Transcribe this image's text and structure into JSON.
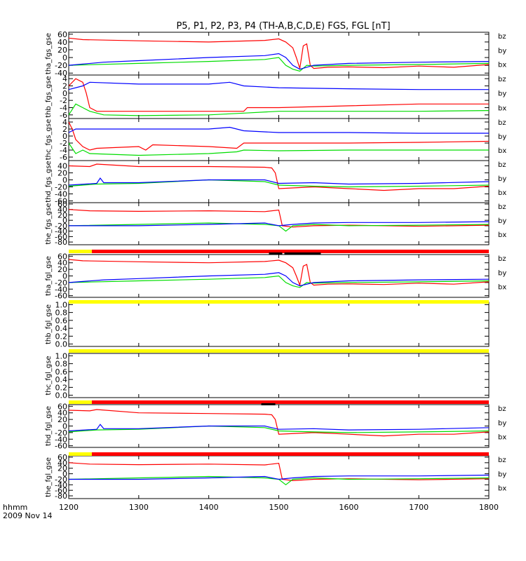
{
  "chart_data": {
    "type": "line",
    "title": "P5, P1, P2, P3, P4 (TH-A,B,C,D,E) FGS, FGL [nT]",
    "x_range": [
      1200,
      1800
    ],
    "x_ticks": [
      "1200",
      "1300",
      "1400",
      "1500",
      "1600",
      "1700",
      "1800"
    ],
    "x_label_1": "hhmm",
    "x_label_2": "2009 Nov 14",
    "legend": [
      "bz",
      "by",
      "bx"
    ],
    "colors": {
      "bz": "#ff0000",
      "by": "#00dd00",
      "bx": "#0000ff"
    },
    "panels": [
      {
        "ylabel": "tha_fgs_gse",
        "y_ticks": [
          "60",
          "40",
          "20",
          "0",
          "-20",
          "-40"
        ],
        "ylim": [
          -45,
          65
        ],
        "series": [
          {
            "name": "bz",
            "x": [
              1200,
              1220,
              1300,
              1400,
              1480,
              1500,
              1510,
              1520,
              1525,
              1530,
              1535,
              1540,
              1545,
              1550,
              1570,
              1600,
              1650,
              1700,
              1750,
              1800
            ],
            "values": [
              50,
              46,
              43,
              40,
              44,
              48,
              40,
              25,
              0,
              -28,
              30,
              35,
              -20,
              -28,
              -25,
              -24,
              -26,
              -22,
              -25,
              -18
            ]
          },
          {
            "name": "by",
            "x": [
              1200,
              1300,
              1400,
              1480,
              1500,
              1510,
              1520,
              1530,
              1540,
              1550,
              1600,
              1700,
              1800
            ],
            "values": [
              -20,
              -15,
              -10,
              -5,
              0,
              -20,
              -30,
              -35,
              -20,
              -22,
              -20,
              -18,
              -15
            ]
          },
          {
            "name": "bx",
            "x": [
              1200,
              1250,
              1300,
              1400,
              1480,
              1500,
              1510,
              1520,
              1530,
              1550,
              1600,
              1700,
              1800
            ],
            "values": [
              -20,
              -12,
              -8,
              0,
              5,
              10,
              0,
              -20,
              -30,
              -20,
              -15,
              -12,
              -10
            ]
          }
        ]
      },
      {
        "ylabel": "thb_fgs_gse",
        "y_ticks": [
          "4",
          "2",
          "0",
          "-2",
          "-4",
          "-6"
        ],
        "ylim": [
          -7,
          5
        ],
        "series": [
          {
            "name": "bz",
            "x": [
              1200,
              1210,
              1220,
              1225,
              1230,
              1240,
              1300,
              1400,
              1450,
              1455,
              1500,
              1600,
              1700,
              1800
            ],
            "values": [
              2,
              4,
              3,
              0,
              -4,
              -5,
              -5,
              -5,
              -5,
              -4,
              -4,
              -3.5,
              -3,
              -3
            ]
          },
          {
            "name": "by",
            "x": [
              1200,
              1210,
              1220,
              1230,
              1250,
              1300,
              1400,
              1450,
              1500,
              1600,
              1700,
              1800
            ],
            "values": [
              -6,
              -3,
              -4,
              -5,
              -6,
              -6.2,
              -6,
              -5.5,
              -5,
              -5,
              -5,
              -4.8
            ]
          },
          {
            "name": "bx",
            "x": [
              1200,
              1220,
              1230,
              1300,
              1400,
              1430,
              1450,
              1500,
              1600,
              1700,
              1800
            ],
            "values": [
              1,
              2,
              3,
              2.5,
              2.5,
              3,
              2,
              1.5,
              1.2,
              1,
              1
            ]
          }
        ]
      },
      {
        "ylabel": "thc_fgs_gse",
        "y_ticks": [
          "4",
          "2",
          "0",
          "-2",
          "-4",
          "-6"
        ],
        "ylim": [
          -7,
          5
        ],
        "series": [
          {
            "name": "bz",
            "x": [
              1200,
              1205,
              1210,
              1220,
              1230,
              1240,
              1300,
              1310,
              1320,
              1400,
              1440,
              1450,
              1500,
              1600,
              1700,
              1800
            ],
            "values": [
              4,
              2,
              -1,
              -3,
              -4,
              -3.5,
              -3,
              -4,
              -2.5,
              -3,
              -3.5,
              -2,
              -2,
              -2,
              -1.8,
              -1.5
            ]
          },
          {
            "name": "by",
            "x": [
              1200,
              1210,
              1220,
              1230,
              1300,
              1400,
              1440,
              1450,
              1500,
              1600,
              1700,
              1800
            ],
            "values": [
              -2,
              -5,
              -4,
              -5,
              -5.5,
              -5,
              -4.5,
              -4,
              -4.2,
              -4,
              -4,
              -4
            ]
          },
          {
            "name": "bx",
            "x": [
              1200,
              1210,
              1230,
              1300,
              1400,
              1430,
              1450,
              1500,
              1600,
              1700,
              1800
            ],
            "values": [
              1,
              2,
              2,
              2,
              2,
              2.5,
              1.5,
              1,
              1,
              0.8,
              0.8
            ]
          }
        ]
      },
      {
        "ylabel": "thd_fgs_gse",
        "y_ticks": [
          "40",
          "20",
          "0",
          "-20",
          "-40",
          "-60"
        ],
        "ylim": [
          -65,
          55
        ],
        "series": [
          {
            "name": "bz",
            "x": [
              1200,
              1230,
              1240,
              1300,
              1400,
              1480,
              1490,
              1495,
              1500,
              1550,
              1600,
              1650,
              1700,
              1750,
              1800
            ],
            "values": [
              40,
              38,
              45,
              38,
              38,
              36,
              34,
              20,
              -25,
              -20,
              -25,
              -30,
              -25,
              -25,
              -18
            ]
          },
          {
            "name": "by",
            "x": [
              1200,
              1240,
              1300,
              1400,
              1480,
              1500,
              1550,
              1600,
              1700,
              1800
            ],
            "values": [
              -18,
              -12,
              -10,
              0,
              -5,
              -15,
              -18,
              -20,
              -18,
              -15
            ]
          },
          {
            "name": "bx",
            "x": [
              1200,
              1240,
              1245,
              1250,
              1300,
              1400,
              1480,
              1500,
              1550,
              1600,
              1700,
              1800
            ],
            "values": [
              -15,
              -10,
              5,
              -8,
              -8,
              0,
              0,
              -10,
              -8,
              -12,
              -10,
              -5
            ]
          }
        ]
      },
      {
        "ylabel": "the_fgs_gse",
        "y_ticks": [
          "60",
          "40",
          "20",
          "0",
          "-20",
          "-40",
          "-60",
          "-80"
        ],
        "ylim": [
          -90,
          65
        ],
        "series": [
          {
            "name": "bz",
            "x": [
              1200,
              1230,
              1300,
              1400,
              1480,
              1500,
              1505,
              1520,
              1550,
              1600,
              1700,
              1800
            ],
            "values": [
              40,
              35,
              33,
              35,
              32,
              38,
              -20,
              -25,
              -20,
              -18,
              -22,
              -18
            ]
          },
          {
            "name": "by",
            "x": [
              1200,
              1300,
              1400,
              1480,
              1500,
              1510,
              1520,
              1550,
              1600,
              1700,
              1800
            ],
            "values": [
              -20,
              -15,
              -10,
              -15,
              -20,
              -40,
              -20,
              -15,
              -20,
              -18,
              -15
            ]
          },
          {
            "name": "bx",
            "x": [
              1200,
              1300,
              1400,
              1480,
              1500,
              1520,
              1550,
              1600,
              1700,
              1800
            ],
            "values": [
              -20,
              -20,
              -15,
              -10,
              -20,
              -15,
              -10,
              -8,
              -8,
              -5
            ]
          }
        ]
      },
      {
        "ylabel": "tha_fgl_gse",
        "y_ticks": [
          "60",
          "40",
          "20",
          "0",
          "-20",
          "-40",
          "-60"
        ],
        "ylim": [
          -65,
          65
        ],
        "series": [
          {
            "name": "bz",
            "x": [
              1200,
              1220,
              1300,
              1400,
              1480,
              1500,
              1510,
              1520,
              1525,
              1530,
              1535,
              1540,
              1545,
              1550,
              1570,
              1600,
              1650,
              1700,
              1750,
              1800
            ],
            "values": [
              50,
              46,
              43,
              40,
              44,
              48,
              40,
              25,
              0,
              -28,
              30,
              35,
              -20,
              -28,
              -25,
              -24,
              -26,
              -22,
              -25,
              -18
            ]
          },
          {
            "name": "by",
            "x": [
              1200,
              1300,
              1400,
              1480,
              1500,
              1510,
              1520,
              1530,
              1540,
              1550,
              1600,
              1700,
              1800
            ],
            "values": [
              -20,
              -15,
              -10,
              -5,
              0,
              -20,
              -30,
              -35,
              -20,
              -22,
              -20,
              -18,
              -15
            ]
          },
          {
            "name": "bx",
            "x": [
              1200,
              1250,
              1300,
              1400,
              1480,
              1500,
              1510,
              1520,
              1530,
              1550,
              1600,
              1700,
              1800
            ],
            "values": [
              -20,
              -12,
              -8,
              0,
              5,
              10,
              0,
              -20,
              -30,
              -20,
              -15,
              -12,
              -10
            ]
          }
        ]
      },
      {
        "ylabel": "thb_fgl_gse",
        "y_ticks": [
          "1.0",
          "0.8",
          "0.6",
          "0.4",
          "0.2",
          "0.0"
        ],
        "ylim": [
          -0.06,
          1.06
        ],
        "series": []
      },
      {
        "ylabel": "thc_fgl_gse",
        "y_ticks": [
          "1.0",
          "0.8",
          "0.6",
          "0.4",
          "0.2",
          "0.0"
        ],
        "ylim": [
          -0.06,
          1.06
        ],
        "series": []
      },
      {
        "ylabel": "thd_fgl_gse",
        "y_ticks": [
          "60",
          "40",
          "20",
          "0",
          "-20",
          "-40",
          "-60"
        ],
        "ylim": [
          -65,
          65
        ],
        "series": [
          {
            "name": "bz",
            "x": [
              1200,
              1230,
              1240,
              1300,
              1400,
              1480,
              1490,
              1495,
              1500,
              1550,
              1600,
              1650,
              1700,
              1750,
              1800
            ],
            "values": [
              48,
              46,
              50,
              40,
              38,
              36,
              34,
              20,
              -25,
              -20,
              -25,
              -30,
              -25,
              -25,
              -18
            ]
          },
          {
            "name": "by",
            "x": [
              1200,
              1240,
              1300,
              1400,
              1480,
              1500,
              1550,
              1600,
              1700,
              1800
            ],
            "values": [
              -18,
              -12,
              -10,
              0,
              -5,
              -15,
              -18,
              -20,
              -18,
              -15
            ]
          },
          {
            "name": "bx",
            "x": [
              1200,
              1240,
              1245,
              1250,
              1300,
              1400,
              1480,
              1500,
              1550,
              1600,
              1700,
              1800
            ],
            "values": [
              -15,
              -10,
              5,
              -8,
              -8,
              0,
              0,
              -10,
              -8,
              -12,
              -10,
              -5
            ]
          }
        ]
      },
      {
        "ylabel": "the_fgl_gse",
        "y_ticks": [
          "60",
          "40",
          "20",
          "0",
          "-20",
          "-40",
          "-60",
          "-80"
        ],
        "ylim": [
          -90,
          65
        ],
        "series": [
          {
            "name": "bz",
            "x": [
              1200,
              1230,
              1300,
              1400,
              1480,
              1500,
              1505,
              1520,
              1550,
              1600,
              1700,
              1800
            ],
            "values": [
              40,
              35,
              33,
              35,
              32,
              38,
              -20,
              -25,
              -20,
              -18,
              -22,
              -18
            ]
          },
          {
            "name": "by",
            "x": [
              1200,
              1300,
              1400,
              1480,
              1500,
              1510,
              1520,
              1550,
              1600,
              1700,
              1800
            ],
            "values": [
              -20,
              -15,
              -10,
              -15,
              -20,
              -40,
              -20,
              -15,
              -20,
              -18,
              -15
            ]
          },
          {
            "name": "bx",
            "x": [
              1200,
              1300,
              1400,
              1480,
              1500,
              1520,
              1550,
              1600,
              1700,
              1800
            ],
            "values": [
              -20,
              -20,
              -15,
              -10,
              -20,
              -15,
              -10,
              -8,
              -8,
              -5
            ]
          }
        ]
      }
    ],
    "status_bars": [
      {
        "after_panel": 4,
        "segments": [
          {
            "from": 1200,
            "to": 1233,
            "color": "#ffff00"
          },
          {
            "from": 1233,
            "to": 1800,
            "color": "#ff0000"
          }
        ],
        "black": [
          {
            "from": 1486,
            "to": 1505
          },
          {
            "from": 1508,
            "to": 1560
          }
        ]
      },
      {
        "after_panel": 5,
        "segments": [
          {
            "from": 1200,
            "to": 1800,
            "color": "#ffff00"
          }
        ],
        "black": []
      },
      {
        "after_panel": 6,
        "segments": [
          {
            "from": 1200,
            "to": 1800,
            "color": "#ffff00"
          }
        ],
        "black": []
      },
      {
        "after_panel": 7,
        "segments": [
          {
            "from": 1200,
            "to": 1233,
            "color": "#ffff00"
          },
          {
            "from": 1233,
            "to": 1800,
            "color": "#ff0000"
          }
        ],
        "black": [
          {
            "from": 1475,
            "to": 1495
          }
        ]
      },
      {
        "after_panel": 8,
        "segments": [
          {
            "from": 1200,
            "to": 1233,
            "color": "#ffff00"
          },
          {
            "from": 1233,
            "to": 1800,
            "color": "#ff0000"
          }
        ],
        "black": []
      }
    ]
  }
}
